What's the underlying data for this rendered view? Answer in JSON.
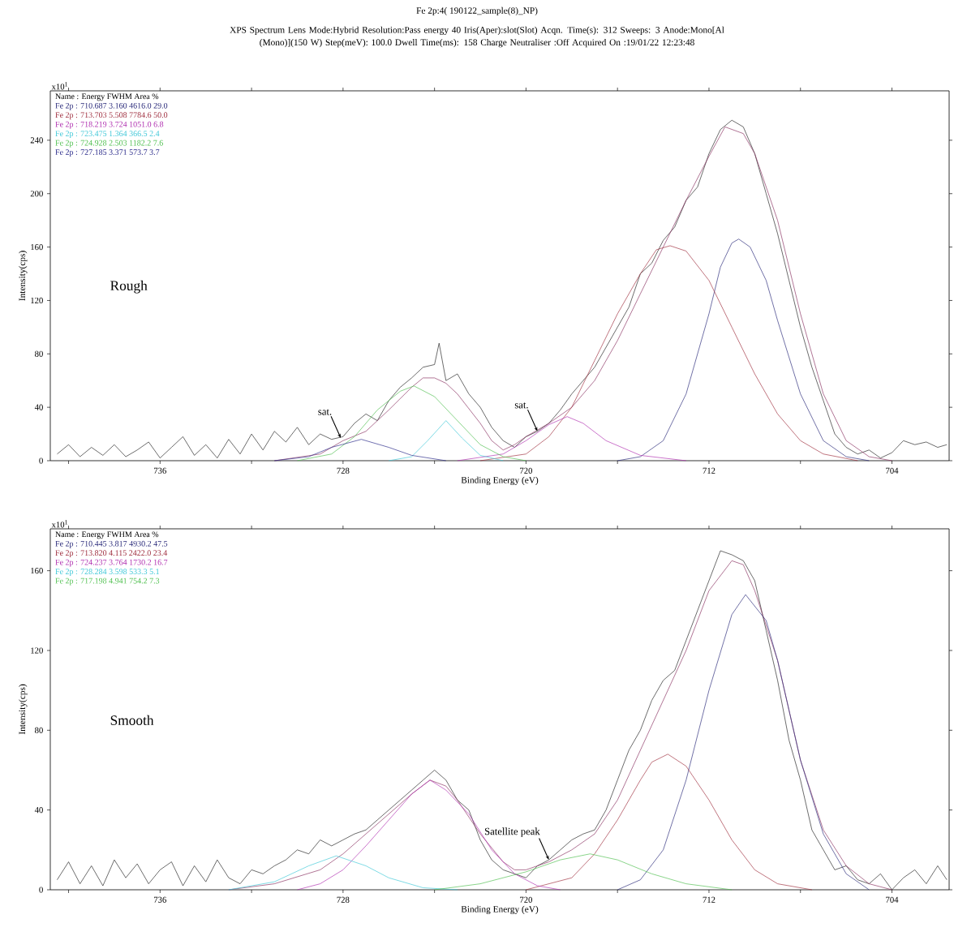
{
  "chart_data": [
    {
      "type": "line",
      "title": "Fe 2p:4( 190122_sample(8)_NP)",
      "subtitle": "XPS Spectrum Lens Mode:Hybrid Resolution:Pass energy 40 Iris(Aper):slot(Slot) Acqn. Time(s): 312 Sweeps: 3 Anode:Mono[Al (Mono)](150 W) Step(meV): 100.0 Dwell Time(ms): 158 Charge Neutraliser :Off Acquired On :19/01/22 12:23:48",
      "xlabel": "Binding Energy (eV)",
      "ylabel": "Intensity(cps)",
      "legend_title": "Name : Energy FWHM Area %",
      "legend": "top left",
      "xlim": [
        740.8,
        701.5
      ],
      "ylim": [
        0,
        277
      ],
      "xticks": [
        {
          "value": 740,
          "label": null
        },
        {
          "value": 736,
          "label": "736"
        },
        {
          "value": 732,
          "label": null
        },
        {
          "value": 728,
          "label": "728"
        },
        {
          "value": 724,
          "label": null
        },
        {
          "value": 720,
          "label": "720"
        },
        {
          "value": 716,
          "label": null
        },
        {
          "value": 712,
          "label": "712"
        },
        {
          "value": 708,
          "label": null
        },
        {
          "value": 704,
          "label": "704"
        }
      ],
      "yticks": [
        0,
        40,
        80,
        120,
        160,
        200,
        240
      ],
      "annotations": [
        "x10$^{1}$",
        "Rough",
        {
          "text": "sat.",
          "x": 728.1,
          "y": 17
        },
        {
          "text": "sat.",
          "x": 719.5,
          "y": 22
        }
      ],
      "series": [
        {
          "color": "#222222",
          "x": [
            740.5,
            740,
            739.5,
            739,
            738.5,
            738,
            737.5,
            737,
            736.5,
            736,
            735.5,
            735,
            734.5,
            734,
            733.5,
            733,
            732.5,
            732,
            731.5,
            731,
            730.5,
            730,
            729.5,
            729,
            728.5,
            728,
            727.5,
            727,
            726.5,
            726,
            725.5,
            725,
            724.5,
            724,
            723.8,
            723.5,
            723,
            722.5,
            722,
            721.5,
            721,
            720.5,
            720,
            719.5,
            719,
            718.5,
            718,
            717.5,
            717,
            716.5,
            716,
            715.5,
            715,
            714.5,
            714,
            713.5,
            713,
            712.5,
            712,
            711.5,
            711,
            710.5,
            710,
            709.5,
            709,
            708.5,
            708,
            707.5,
            707,
            706.5,
            706,
            705.5,
            705,
            704.5,
            704,
            703.5,
            703,
            702.5,
            702,
            701.6
          ],
          "values": [
            5,
            12,
            3,
            10,
            4,
            12,
            3,
            8,
            14,
            2,
            10,
            18,
            4,
            12,
            2,
            16,
            5,
            20,
            8,
            22,
            14,
            25,
            12,
            20,
            16,
            18,
            28,
            35,
            30,
            45,
            55,
            62,
            70,
            72,
            88,
            60,
            65,
            50,
            40,
            25,
            15,
            10,
            18,
            22,
            28,
            38,
            50,
            60,
            70,
            85,
            100,
            115,
            140,
            148,
            165,
            175,
            195,
            205,
            230,
            248,
            255,
            250,
            230,
            200,
            170,
            135,
            100,
            70,
            45,
            20,
            10,
            5,
            8,
            2,
            6,
            15,
            12,
            14,
            10,
            12
          ]
        },
        {
          "color": "#8a3060",
          "x": [
            731,
            729,
            728,
            727,
            726,
            725,
            724.5,
            724,
            723.5,
            723,
            722,
            721.5,
            721,
            720.5,
            720,
            719,
            718,
            717,
            716,
            715,
            714,
            713,
            712,
            711.3,
            710.5,
            710,
            709,
            708,
            707,
            706,
            705,
            704
          ],
          "values": [
            0,
            5,
            15,
            22,
            38,
            55,
            62,
            62,
            58,
            50,
            28,
            15,
            8,
            12,
            18,
            28,
            40,
            60,
            90,
            125,
            160,
            195,
            228,
            250,
            245,
            230,
            180,
            110,
            50,
            15,
            3,
            0
          ]
        },
        {
          "name": "Fe 2p : 710.687 3.160 4616.0 29.0",
          "color": "#2a2a7a",
          "x": [
            716,
            715,
            714,
            713,
            712,
            711.5,
            711,
            710.7,
            710.2,
            709.5,
            709,
            708,
            707,
            706,
            705
          ],
          "values": [
            0,
            3,
            15,
            50,
            110,
            145,
            163,
            166,
            160,
            135,
            105,
            50,
            15,
            3,
            0
          ]
        },
        {
          "name": "Fe 2p : 713.703 5.508 7784.6 50.0",
          "color": "#a03040",
          "x": [
            722,
            720,
            719,
            718,
            717,
            716,
            715,
            714.3,
            713.7,
            713,
            712,
            711,
            710,
            709,
            708,
            707,
            705.5
          ],
          "values": [
            0,
            5,
            18,
            40,
            75,
            110,
            140,
            158,
            161,
            157,
            135,
            100,
            65,
            35,
            15,
            5,
            0
          ]
        },
        {
          "name": "Fe 2p : 718.219 3.724 1051.0 6.8",
          "color": "#b030b0",
          "x": [
            723,
            721,
            720,
            719,
            718.2,
            717.5,
            716.5,
            715,
            713
          ],
          "values": [
            0,
            5,
            15,
            27,
            33,
            28,
            15,
            4,
            0
          ]
        },
        {
          "name": "Fe 2p : 723.475 1.364 366.5 2.4",
          "color": "#40c8d8",
          "x": [
            726,
            725,
            724.3,
            723.5,
            722.8,
            722,
            721
          ],
          "values": [
            0,
            3,
            15,
            30,
            17,
            4,
            0
          ]
        },
        {
          "name": "Fe 2p : 724.928 2.503 1182.2 7.6",
          "color": "#50c050",
          "x": [
            730,
            728.5,
            727.5,
            726.5,
            725.5,
            724.9,
            724,
            723,
            722,
            721,
            720
          ],
          "values": [
            0,
            5,
            18,
            38,
            52,
            56,
            48,
            30,
            12,
            3,
            0
          ]
        },
        {
          "name": "Fe 2p : 727.185 3.371 573.7 3.7",
          "color": "#2a2a8a",
          "x": [
            731,
            729.5,
            728.5,
            727.2,
            726,
            725,
            723.5
          ],
          "values": [
            0,
            3,
            10,
            16,
            10,
            4,
            0
          ]
        }
      ]
    },
    {
      "type": "line",
      "xlabel": "Binding Energy (eV)",
      "ylabel": "Intensity(cps)",
      "legend_title": "Name : Energy FWHM Area %",
      "legend": "top left",
      "xlim": [
        740.8,
        701.5
      ],
      "ylim": [
        0,
        181
      ],
      "xticks": [
        {
          "value": 740,
          "label": null
        },
        {
          "value": 736,
          "label": "736"
        },
        {
          "value": 732,
          "label": null
        },
        {
          "value": 728,
          "label": "728"
        },
        {
          "value": 724,
          "label": null
        },
        {
          "value": 720,
          "label": "720"
        },
        {
          "value": 716,
          "label": null
        },
        {
          "value": 712,
          "label": "712"
        },
        {
          "value": 708,
          "label": null
        },
        {
          "value": 704,
          "label": "704"
        }
      ],
      "yticks": [
        0,
        40,
        80,
        120,
        160
      ],
      "annotations": [
        "x10$^{1}$",
        "Smooth",
        {
          "text": "Satellite peak",
          "x": 719,
          "y": 15
        }
      ],
      "series": [
        {
          "color": "#222222",
          "x": [
            740.5,
            740,
            739.5,
            739,
            738.5,
            738,
            737.5,
            737,
            736.5,
            736,
            735.5,
            735,
            734.5,
            734,
            733.5,
            733,
            732.5,
            732,
            731.5,
            731,
            730.5,
            730,
            729.5,
            729,
            728.5,
            728,
            727.5,
            727,
            726.5,
            726,
            725.5,
            725,
            724.5,
            724,
            723.5,
            723,
            722.5,
            722,
            721.5,
            721,
            720.5,
            720,
            719.5,
            719,
            718.5,
            718,
            717.5,
            717,
            716.5,
            716,
            715.5,
            715,
            714.5,
            714,
            713.5,
            713,
            712.5,
            712,
            711.5,
            711,
            710.5,
            710,
            709.5,
            709,
            708.5,
            708,
            707.5,
            707,
            706.5,
            706,
            705.5,
            705,
            704.5,
            704,
            703.5,
            703,
            702.5,
            702,
            701.6
          ],
          "values": [
            5,
            14,
            3,
            12,
            2,
            15,
            6,
            13,
            3,
            10,
            14,
            2,
            12,
            4,
            15,
            6,
            3,
            10,
            8,
            12,
            15,
            20,
            18,
            25,
            22,
            25,
            28,
            30,
            35,
            40,
            45,
            50,
            55,
            60,
            55,
            45,
            40,
            25,
            15,
            10,
            8,
            6,
            12,
            15,
            20,
            25,
            28,
            30,
            40,
            55,
            70,
            80,
            95,
            105,
            110,
            125,
            140,
            155,
            170,
            168,
            165,
            155,
            130,
            105,
            75,
            55,
            30,
            20,
            10,
            12,
            5,
            3,
            8,
            0,
            6,
            10,
            3,
            12,
            5
          ]
        },
        {
          "color": "#8a3060",
          "x": [
            733,
            731,
            729,
            728,
            727,
            726,
            725,
            724.2,
            723.5,
            723,
            722,
            721,
            720.5,
            720,
            719,
            718,
            717,
            716,
            715,
            714,
            713,
            712,
            711,
            710.5,
            710,
            709,
            708,
            707,
            706,
            705,
            704
          ],
          "values": [
            0,
            3,
            10,
            18,
            28,
            38,
            48,
            55,
            52,
            45,
            28,
            14,
            10,
            10,
            14,
            20,
            28,
            45,
            70,
            95,
            120,
            150,
            165,
            163,
            150,
            115,
            65,
            30,
            12,
            3,
            0
          ]
        },
        {
          "name": "Fe 2p : 710.445 3.817 4930.2 47.5",
          "color": "#2a2a7a",
          "x": [
            716,
            715,
            714,
            713,
            712,
            711,
            710.4,
            709.5,
            709,
            708,
            707,
            706,
            705
          ],
          "values": [
            0,
            5,
            20,
            55,
            100,
            138,
            148,
            135,
            115,
            65,
            28,
            8,
            0
          ]
        },
        {
          "name": "Fe 2p : 713.820 4.115 2422.0 23.4",
          "color": "#a03040",
          "x": [
            720,
            718,
            717,
            716,
            715,
            714.5,
            713.8,
            713,
            712,
            711,
            710,
            709,
            707.5
          ],
          "values": [
            0,
            6,
            18,
            35,
            55,
            64,
            68,
            62,
            45,
            25,
            10,
            3,
            0
          ]
        },
        {
          "name": "Fe 2p : 724.237 3.764 1730.2 16.7",
          "color": "#b030b0",
          "x": [
            730,
            729,
            728,
            727,
            726,
            725,
            724.2,
            723.5,
            722.5,
            721.5,
            720.5,
            719.5,
            718.5
          ],
          "values": [
            0,
            3,
            10,
            22,
            35,
            48,
            55,
            50,
            38,
            20,
            8,
            2,
            0
          ]
        },
        {
          "name": "Fe 2p : 728.284 3.598 533.3 5.1",
          "color": "#40c8d8",
          "x": [
            733,
            731,
            729.5,
            728.3,
            727,
            726,
            724.5,
            723
          ],
          "values": [
            0,
            4,
            12,
            17,
            12,
            6,
            1,
            0
          ]
        },
        {
          "name": "Fe 2p : 717.198 4.941 754.2 7.3",
          "color": "#50c050",
          "x": [
            724,
            722,
            720,
            718.5,
            717.2,
            716,
            714.5,
            713,
            711
          ],
          "values": [
            0,
            3,
            9,
            15,
            18,
            15,
            8,
            3,
            0
          ]
        }
      ]
    }
  ]
}
